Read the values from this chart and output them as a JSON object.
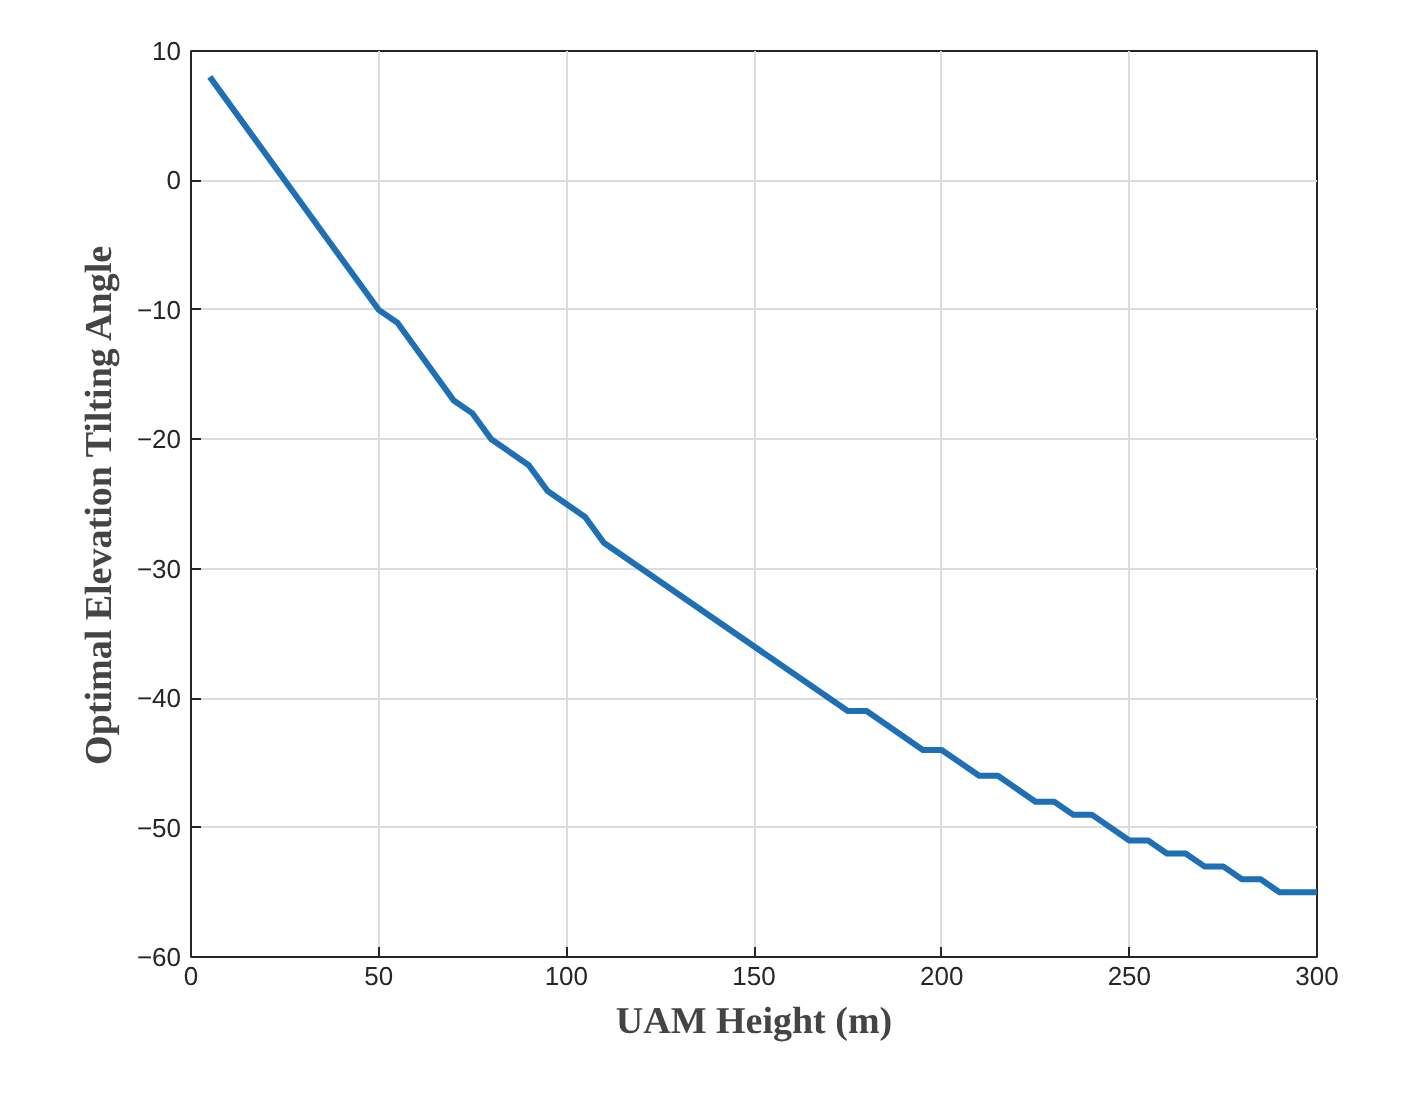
{
  "chart_data": {
    "type": "line",
    "xlabel": "UAM Height (m)",
    "ylabel": "Optimal Elevation Tilting Angle",
    "x": [
      5,
      50,
      55,
      70,
      75,
      80,
      90,
      95,
      105,
      110,
      175,
      180,
      195,
      200,
      210,
      215,
      225,
      230,
      235,
      240,
      250,
      255,
      260,
      265,
      270,
      275,
      280,
      285,
      290,
      300
    ],
    "series": [
      {
        "color": "#1f6fb4",
        "values": [
          8,
          -10,
          -11,
          -17,
          -18,
          -20,
          -22,
          -24,
          -26,
          -28,
          -41,
          -41,
          -44,
          -44,
          -46,
          -46,
          -48,
          -48,
          -49,
          -49,
          -51,
          -51,
          -52,
          -52,
          -53,
          -53,
          -54,
          -54,
          -55,
          -55
        ]
      }
    ],
    "xlim": [
      0,
      300
    ],
    "ylim": [
      -60,
      10
    ],
    "xticks": [
      0,
      50,
      100,
      150,
      200,
      250,
      300
    ],
    "yticks": [
      -60,
      -50,
      -40,
      -30,
      -20,
      -10,
      0,
      10
    ],
    "grid": true,
    "line_style": "solid",
    "marker": "none"
  }
}
